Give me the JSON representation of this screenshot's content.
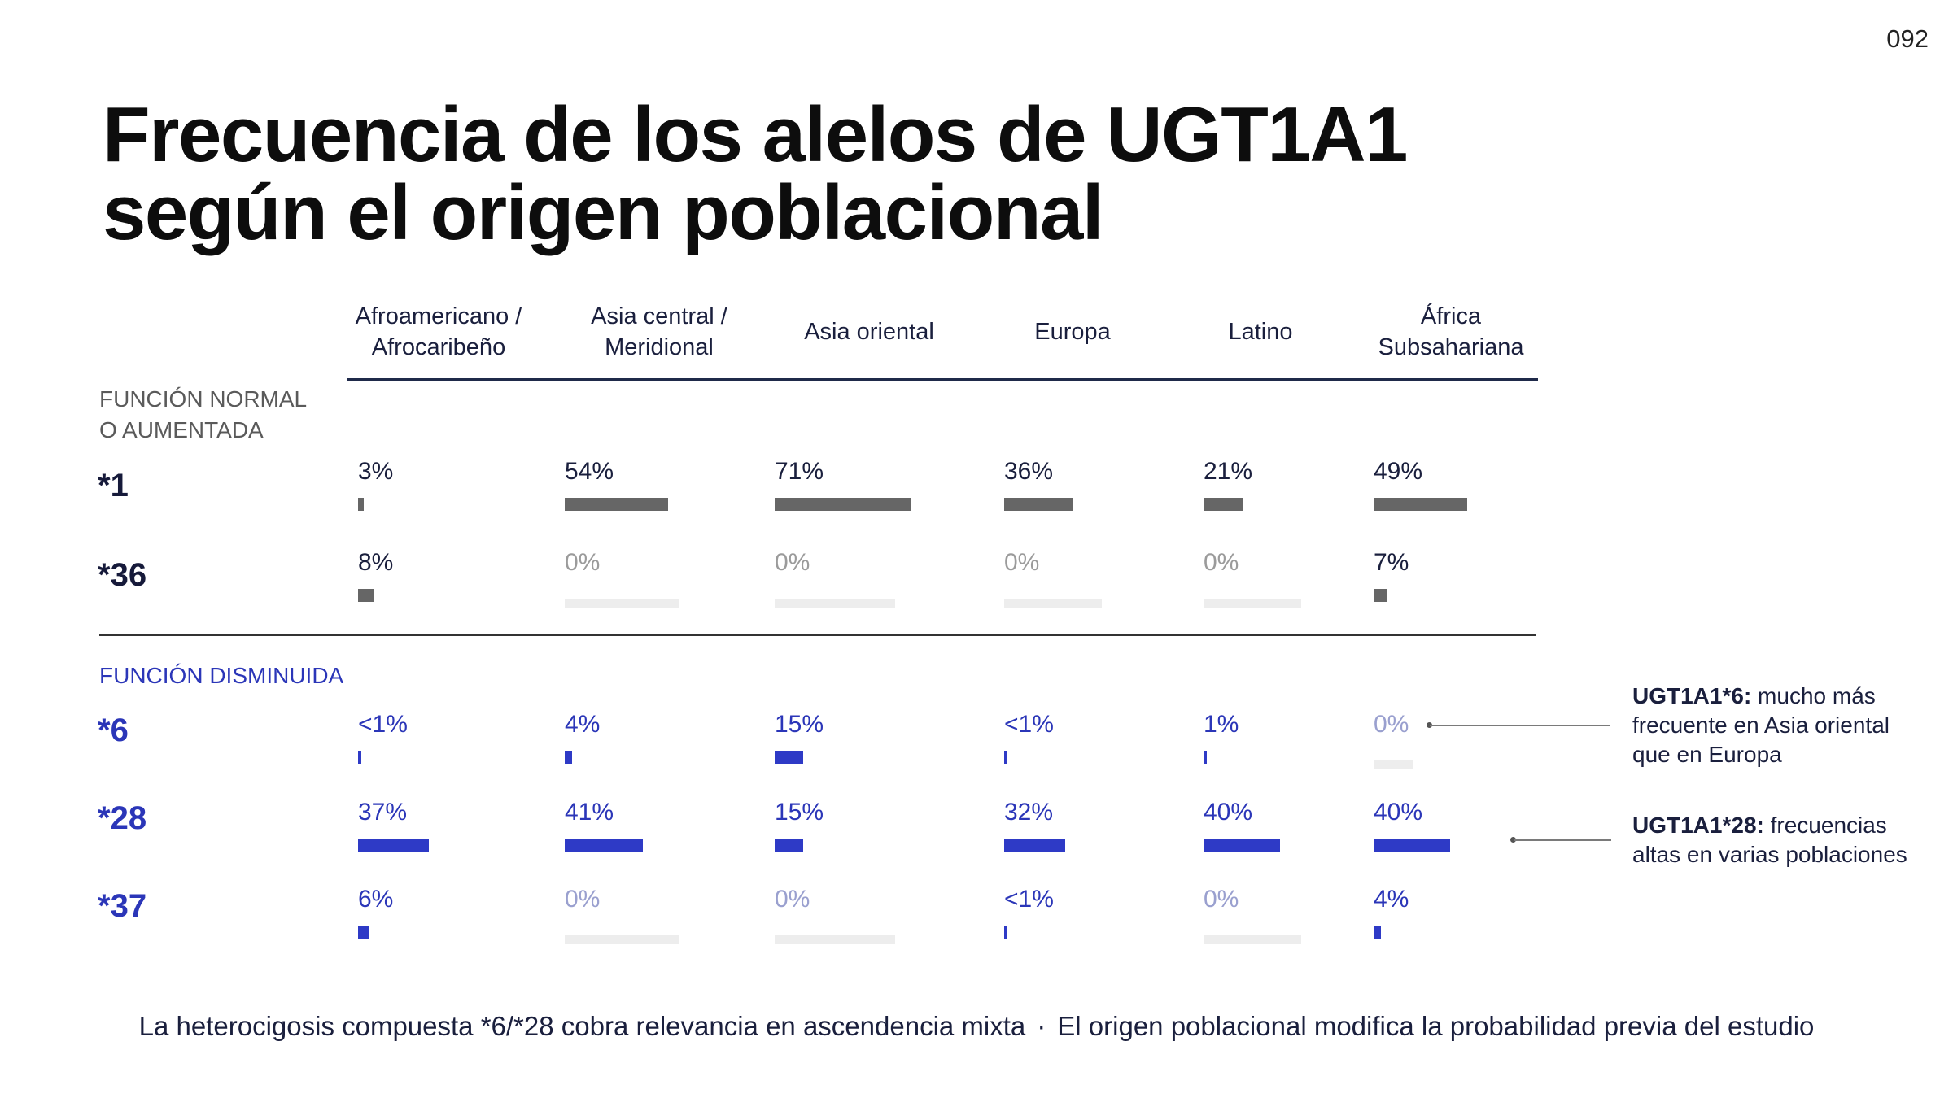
{
  "page_number": "092",
  "title_lines": [
    "Frecuencia de los alelos de UGT1A1",
    "según el origen poblacional"
  ],
  "colors": {
    "normal_bar": "#666666",
    "decreased_bar": "#2e3ac6",
    "zero_bar": "#ededed",
    "decreased_text": "#2b36b8"
  },
  "chart_data": {
    "type": "table",
    "columns": [
      "Afroamericano /\nAfrocaribeño",
      "Asia central /\nMeridional",
      "Asia oriental",
      "Europa",
      "Latino",
      "África\nSubsahariana"
    ],
    "sections": [
      {
        "label": "FUNCIÓN NORMAL\nO AUMENTADA",
        "kind": "normal",
        "rows": [
          {
            "allele": "*1",
            "labels": [
              "3%",
              "54%",
              "71%",
              "36%",
              "21%",
              "49%"
            ],
            "values": [
              3,
              54,
              71,
              36,
              21,
              49
            ]
          },
          {
            "allele": "*36",
            "labels": [
              "8%",
              "0%",
              "0%",
              "0%",
              "0%",
              "7%"
            ],
            "values": [
              8,
              0,
              0,
              0,
              0,
              7
            ]
          }
        ]
      },
      {
        "label": "FUNCIÓN DISMINUIDA",
        "kind": "decreased",
        "rows": [
          {
            "allele": "*6",
            "labels": [
              "<1%",
              "4%",
              "15%",
              "<1%",
              "1%",
              "0%"
            ],
            "values": [
              0.5,
              4,
              15,
              0.5,
              1,
              0
            ]
          },
          {
            "allele": "*28",
            "labels": [
              "37%",
              "41%",
              "15%",
              "32%",
              "40%",
              "40%"
            ],
            "values": [
              37,
              41,
              15,
              32,
              40,
              40
            ]
          },
          {
            "allele": "*37",
            "labels": [
              "6%",
              "0%",
              "0%",
              "<1%",
              "0%",
              "4%"
            ],
            "values": [
              6,
              0,
              0,
              0.5,
              0,
              4
            ]
          }
        ]
      }
    ],
    "annotations": [
      {
        "bold": "UGT1A1*6:",
        "text": " mucho más frecuente en Asia oriental que en Europa"
      },
      {
        "bold": "UGT1A1*28:",
        "text": " frecuencias altas en varias poblaciones"
      }
    ]
  },
  "footer": {
    "left": "La heterocigosis compuesta *6/*28 cobra relevancia en ascendencia mixta",
    "separator": "·",
    "right": "El origen poblacional modifica la probabilidad previa del estudio"
  }
}
